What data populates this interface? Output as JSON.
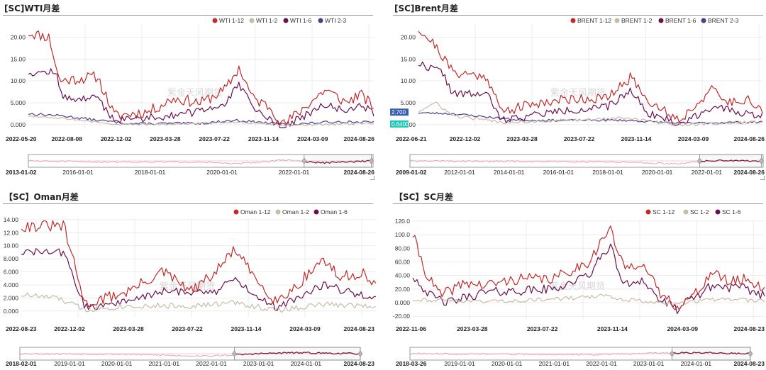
{
  "watermark": "紫金天风期货",
  "chart_data": [
    {
      "type": "line",
      "title": "[SC]WTI月差",
      "series": [
        {
          "name": "WTI 1-12",
          "color": "#c22a2a"
        },
        {
          "name": "WTI 1-2",
          "color": "#c8bca6"
        },
        {
          "name": "WTI 1-6",
          "color": "#6b1050"
        },
        {
          "name": "WTI 2-3",
          "color": "#4a3d8f"
        }
      ],
      "ylim": [
        -1,
        23
      ],
      "yticks": [
        "0.000",
        "5.000",
        "10.00",
        "15.00",
        "20.00"
      ],
      "ytick_values": [
        0,
        5,
        10,
        15,
        20
      ],
      "xticks": [
        "2022-05-20",
        "2022-08-08",
        "2022-12-02",
        "2023-03-28",
        "2023-07-22",
        "2023-11-14",
        "2024-03-09",
        "2024-08-26"
      ],
      "navigator_ticks": [
        "2013-01-02",
        "2016-01-01",
        "2018-01-01",
        "2020-01-01",
        "2022-01-01",
        "2024-08-26"
      ],
      "tooltips": []
    },
    {
      "type": "line",
      "title": "[SC]Brent月差",
      "series": [
        {
          "name": "BRENT 1-12",
          "color": "#c22a2a"
        },
        {
          "name": "BRENT 1-2",
          "color": "#c8bca6"
        },
        {
          "name": "BRENT 1-6",
          "color": "#6b1050"
        },
        {
          "name": "BRENT 2-3",
          "color": "#4a3d8f"
        }
      ],
      "ylim": [
        -1,
        23
      ],
      "yticks": [
        "0.000",
        "5.000",
        "10.00",
        "15.00",
        "20.00"
      ],
      "ytick_values": [
        0,
        5,
        10,
        15,
        20
      ],
      "xticks": [
        "2022-06-21",
        "2022-12-02",
        "2023-03-28",
        "2023-07-22",
        "2023-11-14",
        "2024-03-09",
        "2024-08-26"
      ],
      "navigator_ticks": [
        "2009-01-02",
        "2012-01-01",
        "2014-01-01",
        "2016-01-01",
        "2018-01-01",
        "2020-01-01",
        "2022-01-01",
        "2024-08-26"
      ],
      "tooltips": [
        {
          "label": "2.700",
          "value": 2.7
        },
        {
          "label": "0.6400",
          "value": 0.64
        }
      ]
    },
    {
      "type": "line",
      "title": "【SC】Oman月差",
      "series": [
        {
          "name": "Oman 1-12",
          "color": "#c22a2a"
        },
        {
          "name": "Oman 1-2",
          "color": "#c8bca6"
        },
        {
          "name": "Oman 1-6",
          "color": "#6b1050"
        }
      ],
      "ylim": [
        -1,
        14.2
      ],
      "yticks": [
        "0.000",
        "2.000",
        "4.000",
        "6.000",
        "8.000",
        "10.00",
        "12.00",
        "14.00"
      ],
      "ytick_values": [
        0,
        2,
        4,
        6,
        8,
        10,
        12,
        14
      ],
      "xticks": [
        "2022-08-23",
        "2022-12-02",
        "2023-03-28",
        "2023-07-22",
        "2023-11-14",
        "2024-03-09",
        "2024-08-23"
      ],
      "navigator_ticks": [
        "2018-02-01",
        "2019-01-01",
        "2020-01-01",
        "2021-01-01",
        "2022-01-01",
        "2023-01-01",
        "2024-01-01",
        "2024-08-23"
      ],
      "tooltips": []
    },
    {
      "type": "line",
      "title": "【SC】SC月差",
      "series": [
        {
          "name": "SC 1-12",
          "color": "#c22a2a"
        },
        {
          "name": "SC 1-2",
          "color": "#c8bca6"
        },
        {
          "name": "SC 1-6",
          "color": "#6b1050"
        }
      ],
      "ylim": [
        -25,
        122
      ],
      "yticks": [
        "-20.00",
        "0.000",
        "20.00",
        "40.00",
        "60.00",
        "80.00",
        "100.0",
        "120.0"
      ],
      "ytick_values": [
        -20,
        0,
        20,
        40,
        60,
        80,
        100,
        120
      ],
      "xticks": [
        "2022-11-06",
        "2023-03-28",
        "2023-07-22",
        "2023-11-14",
        "2024-03-09",
        "2024-08-23"
      ],
      "navigator_ticks": [
        "2018-03-26",
        "2019-01-01",
        "2020-01-01",
        "2021-01-01",
        "2022-01-01",
        "2023-01-01",
        "2024-01-01",
        "2024-08-23"
      ],
      "tooltips": []
    }
  ]
}
